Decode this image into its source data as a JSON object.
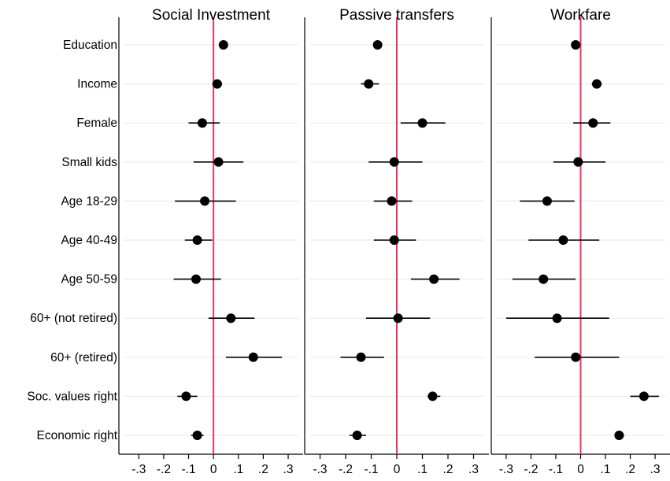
{
  "chart_data": {
    "type": "scatter",
    "style": "coefficient plot with confidence intervals",
    "variables": [
      "Education",
      "Income",
      "Female",
      "Small kids",
      "Age 18-29",
      "Age 40-49",
      "Age 50-59",
      "60+ (not retired)",
      "60+ (retired)",
      "Soc. values right",
      "Economic right"
    ],
    "x_ticks": [
      -0.3,
      -0.2,
      -0.1,
      0,
      0.1,
      0.2,
      0.3
    ],
    "x_tick_labels": [
      "-.3",
      "-.2",
      "-.1",
      "0",
      ".1",
      ".2",
      ".3"
    ],
    "xlim": [
      -0.36,
      0.36
    ],
    "reference_line": {
      "x": 0,
      "color": "#e8365d"
    },
    "grid": true,
    "marker_color": "#000000",
    "panels": [
      {
        "title": "Social Investment",
        "xlim": [
          -0.38,
          0.36
        ],
        "estimates": [
          {
            "est": 0.04,
            "lo": 0.025,
            "hi": 0.055
          },
          {
            "est": 0.015,
            "lo": -0.005,
            "hi": 0.035
          },
          {
            "est": -0.045,
            "lo": -0.1,
            "hi": 0.025
          },
          {
            "est": 0.02,
            "lo": -0.08,
            "hi": 0.12
          },
          {
            "est": -0.035,
            "lo": -0.155,
            "hi": 0.09
          },
          {
            "est": -0.065,
            "lo": -0.115,
            "hi": -0.005
          },
          {
            "est": -0.07,
            "lo": -0.16,
            "hi": 0.03
          },
          {
            "est": 0.07,
            "lo": -0.02,
            "hi": 0.165
          },
          {
            "est": 0.16,
            "lo": 0.05,
            "hi": 0.275
          },
          {
            "est": -0.11,
            "lo": -0.145,
            "hi": -0.065
          },
          {
            "est": -0.065,
            "lo": -0.09,
            "hi": -0.04
          }
        ]
      },
      {
        "title": "Passive transfers",
        "estimates": [
          {
            "est": -0.075,
            "lo": -0.09,
            "hi": -0.06
          },
          {
            "est": -0.11,
            "lo": -0.14,
            "hi": -0.07
          },
          {
            "est": 0.1,
            "lo": 0.015,
            "hi": 0.19
          },
          {
            "est": -0.01,
            "lo": -0.11,
            "hi": 0.1
          },
          {
            "est": -0.02,
            "lo": -0.09,
            "hi": 0.06
          },
          {
            "est": -0.01,
            "lo": -0.09,
            "hi": 0.075
          },
          {
            "est": 0.145,
            "lo": 0.055,
            "hi": 0.245
          },
          {
            "est": 0.005,
            "lo": -0.12,
            "hi": 0.13
          },
          {
            "est": -0.14,
            "lo": -0.22,
            "hi": -0.05
          },
          {
            "est": 0.14,
            "lo": 0.12,
            "hi": 0.17
          },
          {
            "est": -0.155,
            "lo": -0.185,
            "hi": -0.12
          }
        ]
      },
      {
        "title": "Workfare",
        "estimates": [
          {
            "est": -0.02,
            "lo": -0.035,
            "hi": -0.005
          },
          {
            "est": 0.065,
            "lo": 0.045,
            "hi": 0.085
          },
          {
            "est": 0.05,
            "lo": -0.03,
            "hi": 0.12
          },
          {
            "est": -0.01,
            "lo": -0.11,
            "hi": 0.1
          },
          {
            "est": -0.135,
            "lo": -0.245,
            "hi": -0.025
          },
          {
            "est": -0.07,
            "lo": -0.21,
            "hi": 0.075
          },
          {
            "est": -0.15,
            "lo": -0.275,
            "hi": -0.02
          },
          {
            "est": -0.095,
            "lo": -0.3,
            "hi": 0.115
          },
          {
            "est": -0.02,
            "lo": -0.185,
            "hi": 0.155
          },
          {
            "est": 0.255,
            "lo": 0.2,
            "hi": 0.315
          },
          {
            "est": 0.155,
            "lo": 0.14,
            "hi": 0.175
          }
        ]
      }
    ]
  }
}
